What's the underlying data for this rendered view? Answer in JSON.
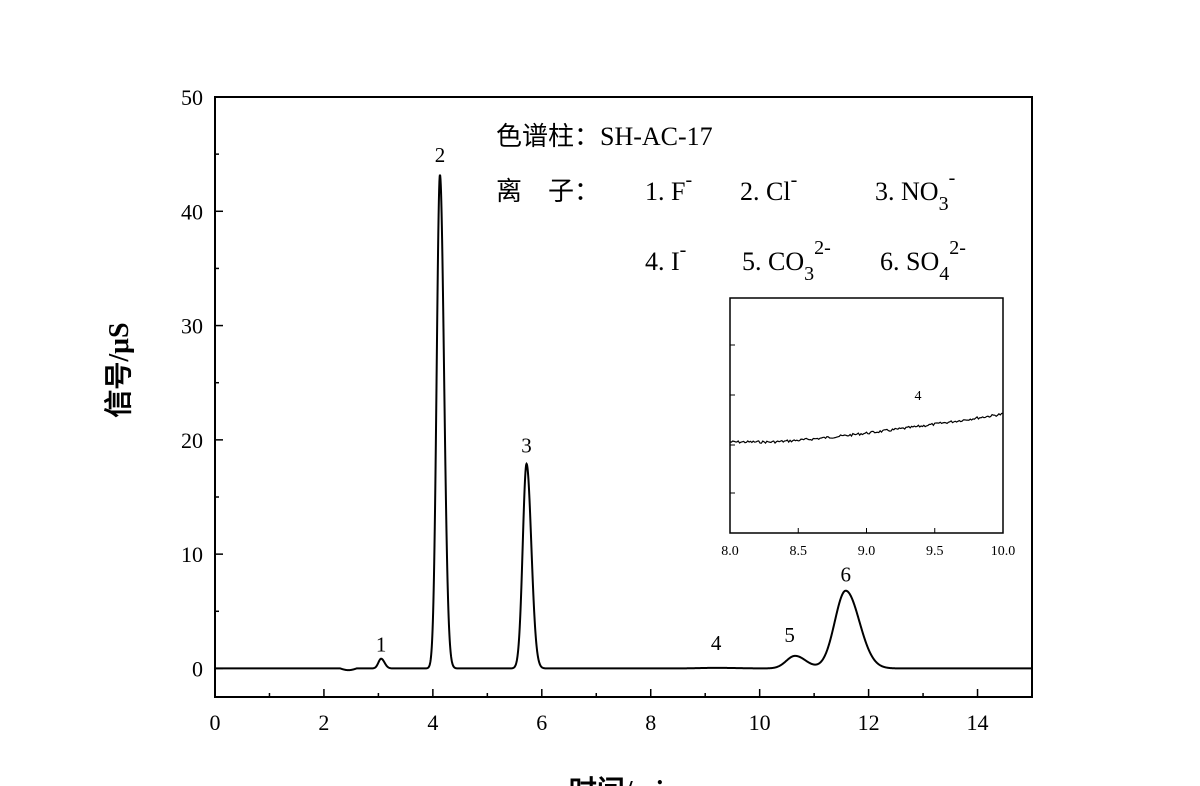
{
  "chart_data": {
    "type": "line",
    "title": "",
    "xlabel": "时间/min",
    "ylabel": "信号/μS",
    "xlim": [
      0,
      15
    ],
    "ylim": [
      -2.5,
      50
    ],
    "x_ticks": [
      "0",
      "2",
      "4",
      "6",
      "8",
      "10",
      "12",
      "14"
    ],
    "y_ticks": [
      "0",
      "10",
      "20",
      "30",
      "40",
      "50"
    ],
    "grid": false,
    "legend": {
      "column": "色谱柱：SH-AC-17",
      "ions_label": "离　子：",
      "ions": [
        {
          "num": "1.",
          "base": "F",
          "sub": "",
          "sup": "-"
        },
        {
          "num": "2.",
          "base": "Cl",
          "sub": "",
          "sup": "-"
        },
        {
          "num": "3.",
          "base": "NO",
          "sub": "3",
          "sup": "-"
        },
        {
          "num": "4.",
          "base": "I",
          "sub": "",
          "sup": "-"
        },
        {
          "num": "5.",
          "base": "CO",
          "sub": "3",
          "sup": "2-"
        },
        {
          "num": "6.",
          "base": "SO",
          "sub": "4",
          "sup": "2-"
        }
      ]
    },
    "series": [
      {
        "baseline": 0,
        "peaks": [
          {
            "label": "1",
            "x": 3.05,
            "y": 0.85,
            "width": 0.05
          },
          {
            "label": "2",
            "x": 4.13,
            "y": 43.2,
            "width": 0.06
          },
          {
            "label": "3",
            "x": 5.72,
            "y": 17.9,
            "width": 0.07
          },
          {
            "label": "4",
            "x": 9.2,
            "y": 0.05,
            "width": 0.3
          },
          {
            "label": "5",
            "x": 10.65,
            "y": 1.1,
            "width": 0.16
          },
          {
            "label": "6",
            "x": 11.58,
            "y": 6.8,
            "width": 0.2
          }
        ]
      }
    ],
    "peak_labels": [
      {
        "text": "1",
        "x": 3.05,
        "y": 1.5
      },
      {
        "text": "2",
        "x": 4.13,
        "y": 44.3
      },
      {
        "text": "3",
        "x": 5.72,
        "y": 18.9
      },
      {
        "text": "4",
        "x": 9.2,
        "y": 1.6
      },
      {
        "text": "5",
        "x": 10.55,
        "y": 2.3
      },
      {
        "text": "6",
        "x": 11.58,
        "y": 7.6
      }
    ],
    "inset": {
      "xlim": [
        8.0,
        10.0
      ],
      "x_ticks": [
        "8.0",
        "8.5",
        "9.0",
        "9.5",
        "10.0"
      ],
      "peak_label": "4"
    }
  }
}
